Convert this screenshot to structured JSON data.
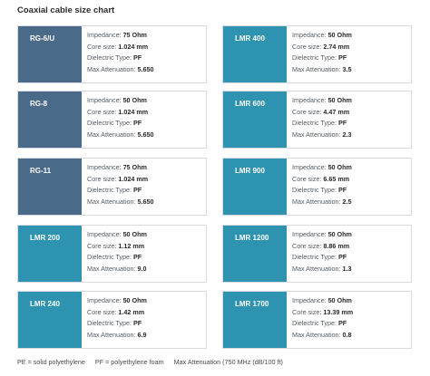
{
  "title": "Coaxial cable size chart",
  "labels": {
    "impedance": "Impedance:",
    "core_size": "Core size:",
    "dielectric": "Dielectric Type:",
    "attenuation": "Max Attenuation:"
  },
  "cables": [
    {
      "name": "RG-6/U",
      "impedance": "75 Ohm",
      "core_size": "1.024 mm",
      "dielectric": "PF",
      "attenuation": "5.650",
      "color": "#4a6a8a"
    },
    {
      "name": "LMR 400",
      "impedance": "50 Ohm",
      "core_size": "2.74 mm",
      "dielectric": "PF",
      "attenuation": "3.5",
      "color": "#2e93b0"
    },
    {
      "name": "RG-8",
      "impedance": "50 Ohm",
      "core_size": "1.024 mm",
      "dielectric": "PF",
      "attenuation": "5.650",
      "color": "#4a6a8a"
    },
    {
      "name": "LMR 600",
      "impedance": "50 Ohm",
      "core_size": "4.47 mm",
      "dielectric": "PF",
      "attenuation": "2.3",
      "color": "#2e93b0"
    },
    {
      "name": "RG-11",
      "impedance": "75 Ohm",
      "core_size": "1.024 mm",
      "dielectric": "PF",
      "attenuation": "5.650",
      "color": "#4a6a8a"
    },
    {
      "name": "LMR 900",
      "impedance": "50 Ohm",
      "core_size": "6.65 mm",
      "dielectric": "PF",
      "attenuation": "2.5",
      "color": "#2e93b0"
    },
    {
      "name": "LMR 200",
      "impedance": "50 Ohm",
      "core_size": "1.12 mm",
      "dielectric": "PF",
      "attenuation": "9.0",
      "color": "#2e93b0"
    },
    {
      "name": "LMR 1200",
      "impedance": "50 Ohm",
      "core_size": "8.86 mm",
      "dielectric": "PF",
      "attenuation": "1.3",
      "color": "#2e93b0"
    },
    {
      "name": "LMR 240",
      "impedance": "50 Ohm",
      "core_size": "1.42 mm",
      "dielectric": "PF",
      "attenuation": "6.9",
      "color": "#2e93b0"
    },
    {
      "name": "LMR 1700",
      "impedance": "50 Ohm",
      "core_size": "13.39 mm",
      "dielectric": "PF",
      "attenuation": "0.8",
      "color": "#2e93b0"
    }
  ],
  "footnote": {
    "pe": "PE = solid polyethylene",
    "pf": "PF = polyethylene foam",
    "attenuation": "Max Attenuation (750 MHz (dB/100 ft)"
  }
}
